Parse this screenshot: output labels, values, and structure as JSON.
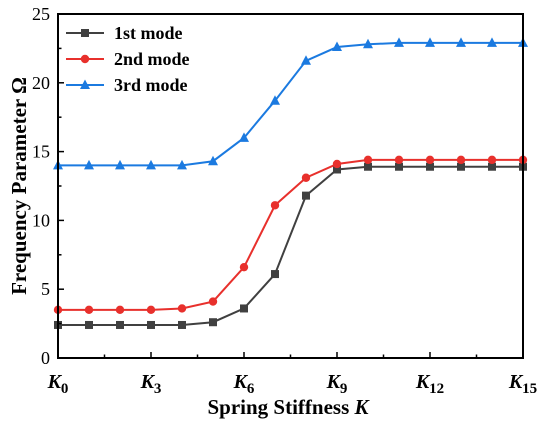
{
  "chart_data": {
    "type": "line",
    "xlabel_text": "Spring Stiffness ",
    "xlabel_var": "K",
    "ylabel": "Frequency Parameter Ω",
    "x_ticks": [
      {
        "value": 0,
        "base": "K",
        "sub": "0"
      },
      {
        "value": 3,
        "base": "K",
        "sub": "3"
      },
      {
        "value": 6,
        "base": "K",
        "sub": "6"
      },
      {
        "value": 9,
        "base": "K",
        "sub": "9"
      },
      {
        "value": 12,
        "base": "K",
        "sub": "12"
      },
      {
        "value": 15,
        "base": "K",
        "sub": "15"
      }
    ],
    "y_ticks": [
      "0",
      "5",
      "10",
      "15",
      "20",
      "25"
    ],
    "xlim": [
      0,
      15
    ],
    "ylim": [
      0,
      25
    ],
    "grid": false,
    "legend_position": "top-left",
    "x": [
      0,
      1,
      2,
      3,
      4,
      5,
      6,
      7,
      8,
      9,
      10,
      11,
      12,
      13,
      14,
      15
    ],
    "series": [
      {
        "name": "1st mode",
        "color": "#404040",
        "marker": "square",
        "values": [
          2.4,
          2.4,
          2.4,
          2.4,
          2.4,
          2.6,
          3.6,
          6.1,
          11.8,
          13.7,
          13.9,
          13.9,
          13.9,
          13.9,
          13.9,
          13.9
        ]
      },
      {
        "name": "2nd mode",
        "color": "#e8302c",
        "marker": "circle",
        "values": [
          3.5,
          3.5,
          3.5,
          3.5,
          3.6,
          4.1,
          6.6,
          11.1,
          13.1,
          14.1,
          14.4,
          14.4,
          14.4,
          14.4,
          14.4,
          14.4
        ]
      },
      {
        "name": "3rd mode",
        "color": "#1b7ae0",
        "marker": "triangle",
        "values": [
          14.0,
          14.0,
          14.0,
          14.0,
          14.0,
          14.3,
          16.0,
          18.7,
          21.6,
          22.6,
          22.8,
          22.9,
          22.9,
          22.9,
          22.9,
          22.9
        ]
      }
    ]
  }
}
